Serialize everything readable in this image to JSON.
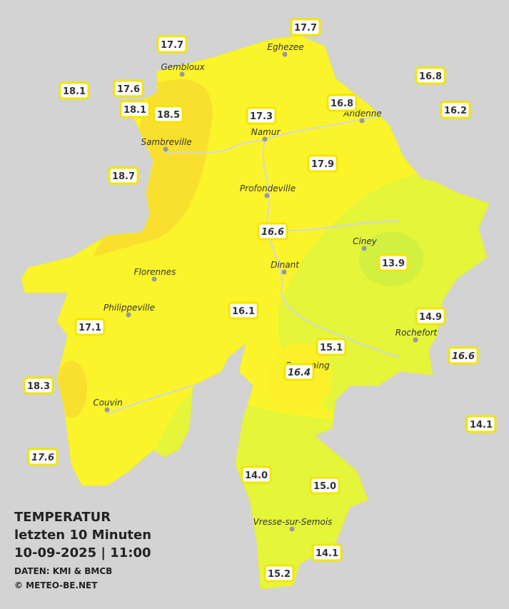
{
  "title": [
    "TEMPERATUR",
    "letzten 10 Minuten",
    "10-09-2025  |  11:00"
  ],
  "credits": [
    "DATEN: KMI & BMCB",
    "© METEO-BE.NET"
  ],
  "cities": [
    {
      "name": "Eghezee"
    },
    {
      "name": "Gembloux"
    },
    {
      "name": "Andenne"
    },
    {
      "name": "Namur"
    },
    {
      "name": "Sambreville"
    },
    {
      "name": "Profondeville"
    },
    {
      "name": "Ciney"
    },
    {
      "name": "Florennes"
    },
    {
      "name": "Dinant"
    },
    {
      "name": "Philippeville"
    },
    {
      "name": "Rochefort"
    },
    {
      "name": "Beauraing"
    },
    {
      "name": "Couvin"
    },
    {
      "name": "Vresse-sur-Semois"
    }
  ],
  "stations": [
    {
      "label": "17.7"
    },
    {
      "label": "17.7"
    },
    {
      "label": "18.1"
    },
    {
      "label": "17.6"
    },
    {
      "label": "18.1"
    },
    {
      "label": "18.5"
    },
    {
      "label": "16.8"
    },
    {
      "label": "16.2"
    },
    {
      "label": "16.8"
    },
    {
      "label": "17.3"
    },
    {
      "label": "17.9"
    },
    {
      "label": "18.7"
    },
    {
      "label": "16.6",
      "italic": true
    },
    {
      "label": "13.9"
    },
    {
      "label": "16.1"
    },
    {
      "label": "17.1"
    },
    {
      "label": "14.9"
    },
    {
      "label": "15.1"
    },
    {
      "label": "16.6",
      "italic": true
    },
    {
      "label": "16.4",
      "italic": true
    },
    {
      "label": "18.3"
    },
    {
      "label": "14.1"
    },
    {
      "label": "17.6",
      "italic": true
    },
    {
      "label": "14.0"
    },
    {
      "label": "15.0"
    },
    {
      "label": "14.1"
    },
    {
      "label": "15.2"
    }
  ]
}
